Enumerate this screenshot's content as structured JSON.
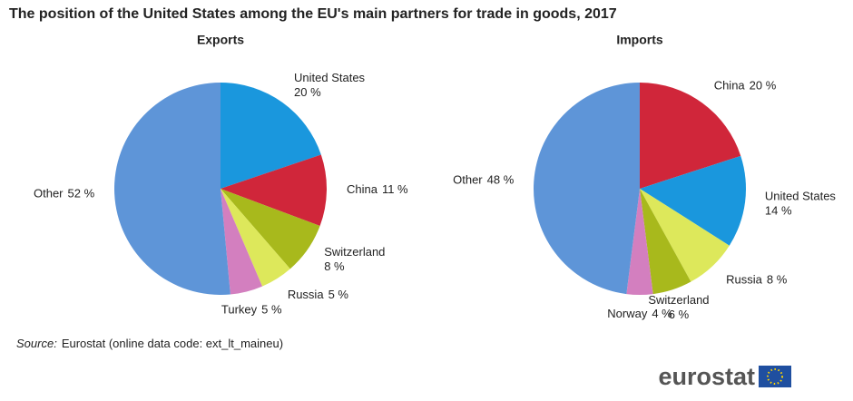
{
  "title": "The position of the United States among the EU's main partners for trade in goods, 2017",
  "source_label": "Source:",
  "source": "Eurostat (online data code: ext_lt_maineu)",
  "logo": "eurostat",
  "chart_data": [
    {
      "type": "pie",
      "title": "Exports",
      "categories": [
        "United States",
        "China",
        "Switzerland",
        "Russia",
        "Turkey",
        "Other"
      ],
      "values": [
        20,
        11,
        8,
        5,
        5,
        52
      ],
      "value_labels": [
        "20 %",
        "11 %",
        "8 %",
        "5 %",
        "5 %",
        "52 %"
      ],
      "colors": [
        "#1a97dd",
        "#d0263a",
        "#a8b91c",
        "#dde85b",
        "#d37fbf",
        "#5e95d8"
      ]
    },
    {
      "type": "pie",
      "title": "Imports",
      "categories": [
        "China",
        "United States",
        "Russia",
        "Switzerland",
        "Norway",
        "Other"
      ],
      "values": [
        20,
        14,
        8,
        6,
        4,
        48
      ],
      "value_labels": [
        "20 %",
        "14 %",
        "8 %",
        "6 %",
        "4 %",
        "48 %"
      ],
      "colors": [
        "#d0263a",
        "#1a97dd",
        "#dde85b",
        "#a8b91c",
        "#d37fbf",
        "#5e95d8"
      ]
    }
  ]
}
